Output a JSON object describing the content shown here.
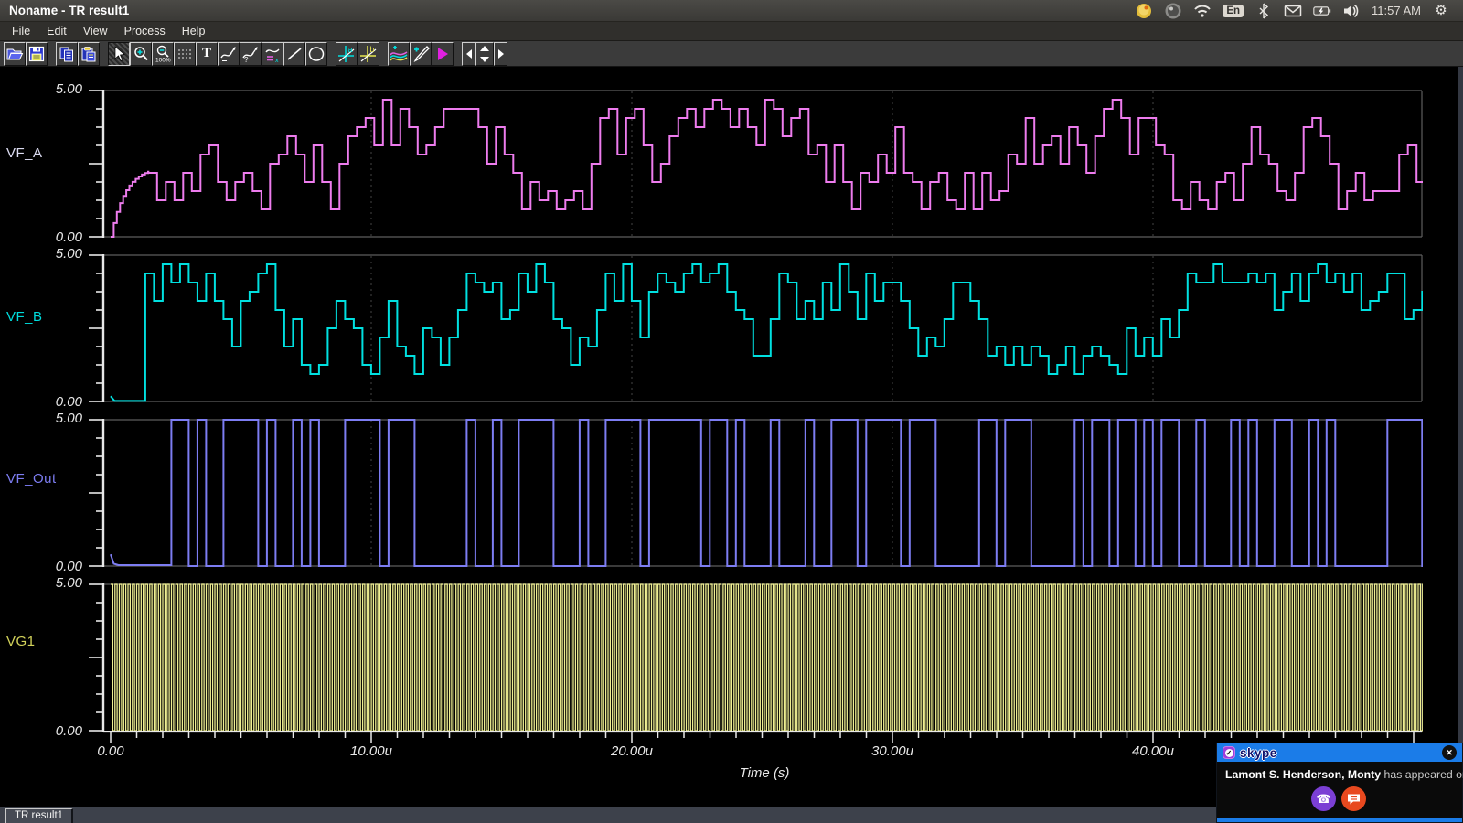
{
  "window": {
    "title": "Noname - TR result1"
  },
  "menubar": {
    "items": [
      "File",
      "Edit",
      "View",
      "Process",
      "Help"
    ]
  },
  "toolbar": {
    "text_tool_glyph": "T",
    "zoom_out_label": "100%",
    "cursor_a_glyph": "a",
    "cursor_b_glyph": "b"
  },
  "tray": {
    "keyboard_layout": "En",
    "clock": "11:57 AM"
  },
  "chart_data": {
    "type": "line",
    "xlabel": "Time (s)",
    "x_tick_labels": [
      "0.00",
      "10.00u",
      "20.00u",
      "30.00u",
      "40.00u"
    ],
    "x_major_ticks_us": [
      0,
      10,
      20,
      30,
      40
    ],
    "x_minor_step_us": 1,
    "x_range_us": [
      0,
      50.35
    ],
    "ylim": [
      0,
      5
    ],
    "y_tick_top": "5.00",
    "y_tick_bottom": "0.00",
    "y_minor_divisions": 8,
    "grid": "dashed vertical gridlines at each 10u major tick",
    "series": [
      {
        "name": "VF_A",
        "color": "#ee7cee",
        "label_color": "#dcdcf2",
        "kind": "random-staircase",
        "step_us": 0.3333,
        "quant_v": 0.3125,
        "level_min": 3,
        "level_max": 15,
        "seed": 13,
        "start": {
          "kind": "exp-rise",
          "until_us": 1.45,
          "target_v": 2.4,
          "tau_us": 0.55
        }
      },
      {
        "name": "VF_B",
        "color": "#00e0e0",
        "label_color": "#00dcdc",
        "kind": "random-staircase",
        "step_us": 0.3333,
        "quant_v": 0.3125,
        "level_min": 3,
        "level_max": 15,
        "seed": 29,
        "start": {
          "kind": "flat-low",
          "until_us": 1.33,
          "blip_v": 0.18,
          "jump_level": 14
        }
      },
      {
        "name": "VF_Out",
        "color": "#7d7df2",
        "label_color": "#7d7df2",
        "kind": "random-binary",
        "bit_us": 0.3333,
        "run_p": 0.52,
        "seed": 7,
        "start": {
          "kind": "flat-low",
          "until_us": 2.33,
          "blip_v": 0.4
        }
      },
      {
        "name": "VG1",
        "color": "#efef92",
        "label_color": "#d2d25a",
        "kind": "clock",
        "period_us": 0.1667,
        "duty": 0.5,
        "low_v": 0,
        "high_v": 5
      }
    ]
  },
  "tabbar": {
    "active_tab": "TR result1"
  },
  "skype_popup": {
    "logo_text": "skype",
    "name": "Lamont S. Henderson, Monty",
    "suffix": " has appeared online",
    "close_glyph": "✕",
    "header_color": "#1b7ce8",
    "call_button_color": "#7b3fd4",
    "chat_button_color": "#e8491f"
  }
}
